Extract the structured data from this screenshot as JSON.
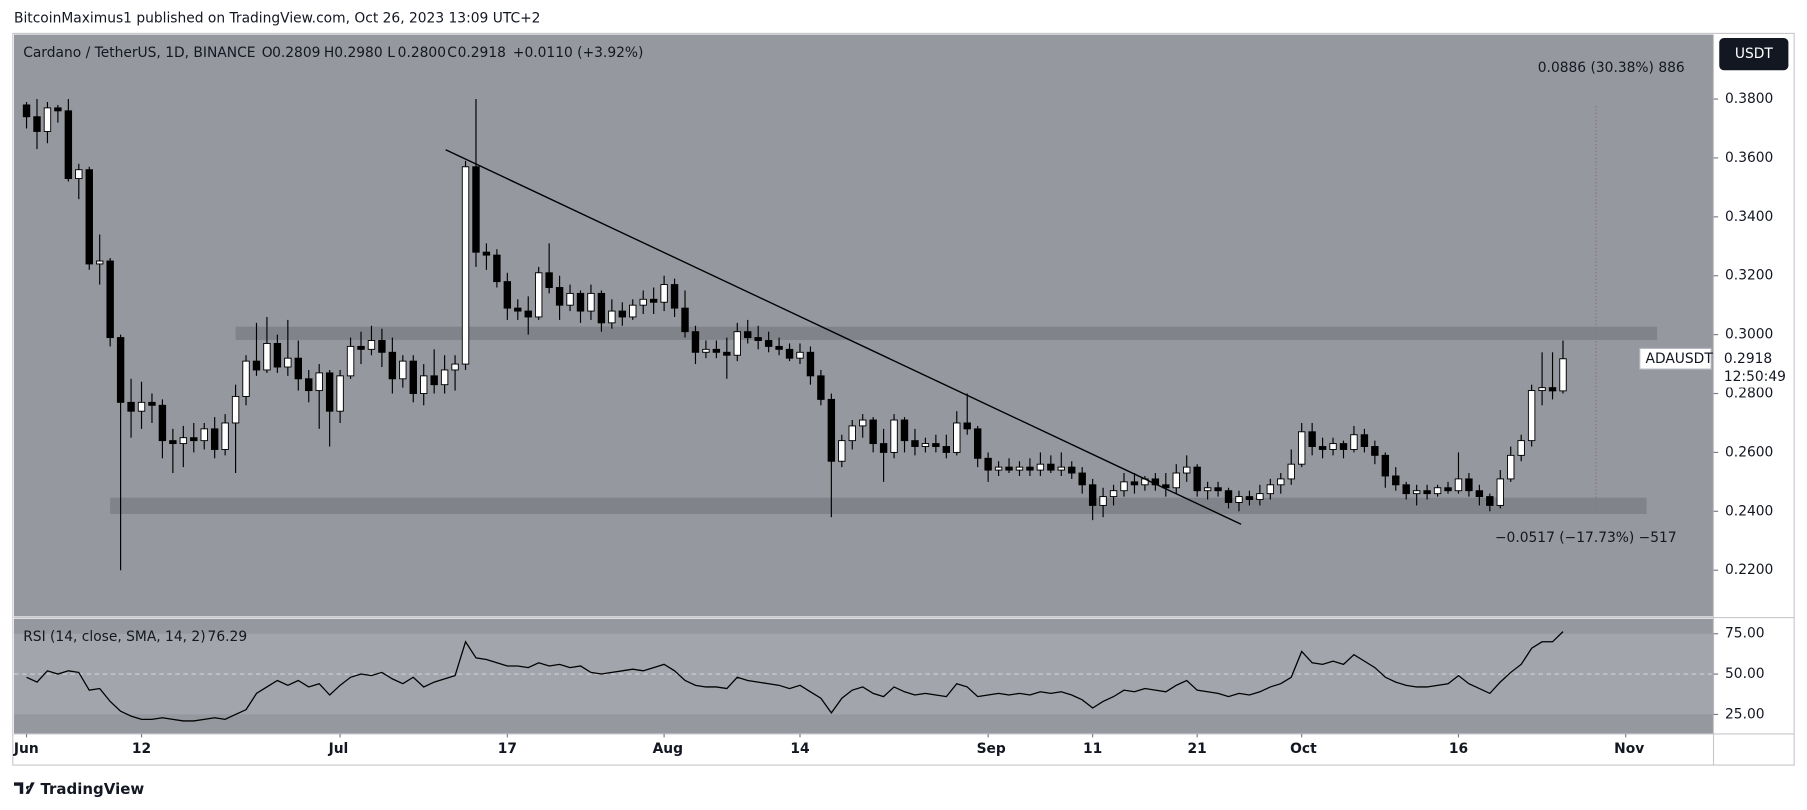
{
  "header": "BitcoinMaximus1 published on TradingView.com, Oct 26, 2023 13:09 UTC+2",
  "footer": "TradingView",
  "chart_data": {
    "type": "candlestick",
    "legend": {
      "symbol": "Cardano / TetherUS, 1D, BINANCE",
      "ohlc_labels": [
        "O",
        "H",
        "L",
        "C"
      ],
      "ohlc_values": [
        "0.2809",
        "0.2980",
        "0.2800",
        "0.2918"
      ],
      "change": "+0.0110 (+3.92%)"
    },
    "currency": "USDT",
    "price_label": {
      "symbol": "ADAUSDT",
      "price": "0.2918",
      "countdown": "12:50:49"
    },
    "up_color": "#ffffff",
    "down_color": "#000000",
    "xlim": [
      -1.2,
      161.4
    ],
    "xticks": [
      {
        "value": 0,
        "label": "Jun"
      },
      {
        "value": 11,
        "label": "12"
      },
      {
        "value": 30,
        "label": "Jul"
      },
      {
        "value": 46,
        "label": "17"
      },
      {
        "value": 61,
        "label": "Aug"
      },
      {
        "value": 74,
        "label": "14"
      },
      {
        "value": 92,
        "label": "Sep"
      },
      {
        "value": 102,
        "label": "11"
      },
      {
        "value": 112,
        "label": "21"
      },
      {
        "value": 122,
        "label": "Oct"
      },
      {
        "value": 137,
        "label": "16"
      },
      {
        "value": 153,
        "label": "Nov"
      }
    ],
    "ylim": [
      0.2043,
      0.4019
    ],
    "yticks": [
      {
        "value": 0.22,
        "label": "0.2200"
      },
      {
        "value": 0.24,
        "label": "0.2400"
      },
      {
        "value": 0.26,
        "label": "0.2600"
      },
      {
        "value": 0.28,
        "label": "0.2800"
      },
      {
        "value": 0.3,
        "label": "0.3000"
      },
      {
        "value": 0.32,
        "label": "0.3200"
      },
      {
        "value": 0.34,
        "label": "0.3400"
      },
      {
        "value": 0.36,
        "label": "0.3600"
      },
      {
        "value": 0.38,
        "label": "0.3800"
      }
    ],
    "ohlc": [
      [
        0.378,
        0.379,
        0.37,
        0.374
      ],
      [
        0.374,
        0.38,
        0.363,
        0.369
      ],
      [
        0.369,
        0.379,
        0.365,
        0.377
      ],
      [
        0.377,
        0.378,
        0.372,
        0.376
      ],
      [
        0.376,
        0.38,
        0.352,
        0.353
      ],
      [
        0.353,
        0.358,
        0.346,
        0.356
      ],
      [
        0.356,
        0.357,
        0.322,
        0.324
      ],
      [
        0.324,
        0.334,
        0.317,
        0.325
      ],
      [
        0.325,
        0.326,
        0.296,
        0.299
      ],
      [
        0.299,
        0.3,
        0.22,
        0.277
      ],
      [
        0.277,
        0.285,
        0.265,
        0.274
      ],
      [
        0.274,
        0.284,
        0.268,
        0.277
      ],
      [
        0.277,
        0.28,
        0.27,
        0.276
      ],
      [
        0.276,
        0.278,
        0.258,
        0.264
      ],
      [
        0.264,
        0.268,
        0.253,
        0.263
      ],
      [
        0.263,
        0.269,
        0.255,
        0.265
      ],
      [
        0.265,
        0.27,
        0.26,
        0.264
      ],
      [
        0.264,
        0.27,
        0.261,
        0.268
      ],
      [
        0.268,
        0.272,
        0.258,
        0.261
      ],
      [
        0.261,
        0.273,
        0.259,
        0.27
      ],
      [
        0.27,
        0.283,
        0.253,
        0.279
      ],
      [
        0.279,
        0.293,
        0.276,
        0.291
      ],
      [
        0.291,
        0.304,
        0.286,
        0.288
      ],
      [
        0.288,
        0.306,
        0.287,
        0.297
      ],
      [
        0.297,
        0.3,
        0.287,
        0.289
      ],
      [
        0.289,
        0.305,
        0.286,
        0.292
      ],
      [
        0.292,
        0.298,
        0.281,
        0.285
      ],
      [
        0.285,
        0.288,
        0.277,
        0.281
      ],
      [
        0.281,
        0.29,
        0.268,
        0.287
      ],
      [
        0.287,
        0.288,
        0.262,
        0.274
      ],
      [
        0.274,
        0.288,
        0.27,
        0.286
      ],
      [
        0.286,
        0.299,
        0.285,
        0.296
      ],
      [
        0.296,
        0.301,
        0.29,
        0.295
      ],
      [
        0.295,
        0.303,
        0.293,
        0.298
      ],
      [
        0.298,
        0.302,
        0.289,
        0.294
      ],
      [
        0.294,
        0.299,
        0.28,
        0.285
      ],
      [
        0.285,
        0.293,
        0.282,
        0.291
      ],
      [
        0.291,
        0.293,
        0.277,
        0.28
      ],
      [
        0.28,
        0.29,
        0.276,
        0.286
      ],
      [
        0.286,
        0.295,
        0.28,
        0.283
      ],
      [
        0.283,
        0.293,
        0.28,
        0.288
      ],
      [
        0.288,
        0.293,
        0.281,
        0.29
      ],
      [
        0.29,
        0.359,
        0.288,
        0.357
      ],
      [
        0.357,
        0.38,
        0.323,
        0.328
      ],
      [
        0.328,
        0.331,
        0.322,
        0.327
      ],
      [
        0.327,
        0.329,
        0.316,
        0.318
      ],
      [
        0.318,
        0.321,
        0.305,
        0.309
      ],
      [
        0.309,
        0.312,
        0.305,
        0.308
      ],
      [
        0.308,
        0.313,
        0.3,
        0.306
      ],
      [
        0.306,
        0.323,
        0.305,
        0.321
      ],
      [
        0.321,
        0.331,
        0.314,
        0.316
      ],
      [
        0.316,
        0.32,
        0.305,
        0.31
      ],
      [
        0.31,
        0.317,
        0.308,
        0.314
      ],
      [
        0.314,
        0.315,
        0.304,
        0.308
      ],
      [
        0.308,
        0.317,
        0.305,
        0.314
      ],
      [
        0.314,
        0.315,
        0.301,
        0.304
      ],
      [
        0.304,
        0.312,
        0.302,
        0.308
      ],
      [
        0.308,
        0.311,
        0.303,
        0.306
      ],
      [
        0.306,
        0.312,
        0.305,
        0.31
      ],
      [
        0.31,
        0.315,
        0.307,
        0.312
      ],
      [
        0.312,
        0.316,
        0.307,
        0.311
      ],
      [
        0.311,
        0.32,
        0.308,
        0.317
      ],
      [
        0.317,
        0.319,
        0.306,
        0.309
      ],
      [
        0.309,
        0.315,
        0.299,
        0.301
      ],
      [
        0.301,
        0.303,
        0.29,
        0.294
      ],
      [
        0.294,
        0.298,
        0.292,
        0.295
      ],
      [
        0.295,
        0.298,
        0.292,
        0.294
      ],
      [
        0.294,
        0.299,
        0.285,
        0.293
      ],
      [
        0.293,
        0.304,
        0.291,
        0.301
      ],
      [
        0.301,
        0.305,
        0.297,
        0.299
      ],
      [
        0.299,
        0.303,
        0.295,
        0.298
      ],
      [
        0.298,
        0.301,
        0.294,
        0.296
      ],
      [
        0.296,
        0.299,
        0.293,
        0.295
      ],
      [
        0.295,
        0.297,
        0.291,
        0.292
      ],
      [
        0.292,
        0.297,
        0.29,
        0.294
      ],
      [
        0.294,
        0.296,
        0.283,
        0.286
      ],
      [
        0.286,
        0.288,
        0.276,
        0.278
      ],
      [
        0.278,
        0.28,
        0.238,
        0.257
      ],
      [
        0.257,
        0.266,
        0.255,
        0.264
      ],
      [
        0.264,
        0.271,
        0.261,
        0.269
      ],
      [
        0.269,
        0.273,
        0.265,
        0.271
      ],
      [
        0.271,
        0.272,
        0.26,
        0.263
      ],
      [
        0.263,
        0.268,
        0.25,
        0.26
      ],
      [
        0.26,
        0.273,
        0.258,
        0.271
      ],
      [
        0.271,
        0.272,
        0.26,
        0.264
      ],
      [
        0.264,
        0.268,
        0.259,
        0.262
      ],
      [
        0.262,
        0.265,
        0.26,
        0.263
      ],
      [
        0.263,
        0.266,
        0.26,
        0.262
      ],
      [
        0.262,
        0.266,
        0.258,
        0.26
      ],
      [
        0.26,
        0.274,
        0.259,
        0.27
      ],
      [
        0.27,
        0.28,
        0.266,
        0.268
      ],
      [
        0.268,
        0.269,
        0.255,
        0.258
      ],
      [
        0.258,
        0.26,
        0.25,
        0.254
      ],
      [
        0.254,
        0.257,
        0.252,
        0.255
      ],
      [
        0.255,
        0.258,
        0.253,
        0.254
      ],
      [
        0.254,
        0.257,
        0.252,
        0.255
      ],
      [
        0.255,
        0.258,
        0.252,
        0.254
      ],
      [
        0.254,
        0.26,
        0.252,
        0.256
      ],
      [
        0.256,
        0.259,
        0.253,
        0.254
      ],
      [
        0.254,
        0.26,
        0.252,
        0.255
      ],
      [
        0.255,
        0.257,
        0.251,
        0.253
      ],
      [
        0.253,
        0.255,
        0.246,
        0.249
      ],
      [
        0.249,
        0.251,
        0.237,
        0.242
      ],
      [
        0.242,
        0.248,
        0.238,
        0.245
      ],
      [
        0.245,
        0.249,
        0.242,
        0.247
      ],
      [
        0.247,
        0.253,
        0.245,
        0.25
      ],
      [
        0.25,
        0.253,
        0.246,
        0.249
      ],
      [
        0.249,
        0.252,
        0.247,
        0.251
      ],
      [
        0.251,
        0.253,
        0.247,
        0.249
      ],
      [
        0.249,
        0.253,
        0.245,
        0.248
      ],
      [
        0.248,
        0.256,
        0.246,
        0.253
      ],
      [
        0.253,
        0.259,
        0.25,
        0.255
      ],
      [
        0.255,
        0.256,
        0.245,
        0.247
      ],
      [
        0.247,
        0.25,
        0.244,
        0.248
      ],
      [
        0.248,
        0.25,
        0.245,
        0.247
      ],
      [
        0.247,
        0.248,
        0.241,
        0.243
      ],
      [
        0.243,
        0.247,
        0.24,
        0.245
      ],
      [
        0.245,
        0.247,
        0.242,
        0.244
      ],
      [
        0.244,
        0.249,
        0.242,
        0.246
      ],
      [
        0.246,
        0.251,
        0.244,
        0.249
      ],
      [
        0.249,
        0.253,
        0.246,
        0.251
      ],
      [
        0.251,
        0.261,
        0.249,
        0.256
      ],
      [
        0.256,
        0.27,
        0.255,
        0.267
      ],
      [
        0.267,
        0.27,
        0.259,
        0.262
      ],
      [
        0.262,
        0.265,
        0.258,
        0.261
      ],
      [
        0.261,
        0.265,
        0.259,
        0.263
      ],
      [
        0.263,
        0.264,
        0.258,
        0.261
      ],
      [
        0.261,
        0.269,
        0.26,
        0.266
      ],
      [
        0.266,
        0.268,
        0.26,
        0.262
      ],
      [
        0.262,
        0.264,
        0.256,
        0.259
      ],
      [
        0.259,
        0.26,
        0.248,
        0.252
      ],
      [
        0.252,
        0.255,
        0.247,
        0.249
      ],
      [
        0.249,
        0.25,
        0.244,
        0.246
      ],
      [
        0.246,
        0.249,
        0.242,
        0.247
      ],
      [
        0.247,
        0.249,
        0.244,
        0.246
      ],
      [
        0.246,
        0.249,
        0.245,
        0.248
      ],
      [
        0.248,
        0.25,
        0.246,
        0.247
      ],
      [
        0.247,
        0.26,
        0.246,
        0.251
      ],
      [
        0.251,
        0.253,
        0.245,
        0.247
      ],
      [
        0.247,
        0.249,
        0.242,
        0.245
      ],
      [
        0.245,
        0.246,
        0.24,
        0.242
      ],
      [
        0.242,
        0.254,
        0.241,
        0.251
      ],
      [
        0.251,
        0.262,
        0.25,
        0.259
      ],
      [
        0.259,
        0.266,
        0.257,
        0.264
      ],
      [
        0.264,
        0.283,
        0.262,
        0.281
      ],
      [
        0.281,
        0.294,
        0.276,
        0.282
      ],
      [
        0.282,
        0.294,
        0.278,
        0.2809
      ],
      [
        0.2809,
        0.298,
        0.28,
        0.2918
      ]
    ],
    "zones": [
      {
        "x": [
          20,
          156
        ],
        "y": [
          0.2982,
          0.3027
        ],
        "color": "#7d7f86"
      },
      {
        "x": [
          8,
          155
        ],
        "y": [
          0.2391,
          0.2446
        ],
        "color": "#7d7f86"
      }
    ],
    "trendline": {
      "x": [
        40.1,
        116.2
      ],
      "y": [
        0.3628,
        0.2356
      ],
      "color": "#000000"
    },
    "measure_labels": [
      "0.0886 (30.38%) 886",
      "−0.0517 (−17.73%) −517"
    ],
    "rsi": {
      "label": "RSI (14, close, SMA, 14, 2)",
      "value_label": "76.29",
      "color": "#000000",
      "ylim": [
        12.9,
        84.3
      ],
      "yticks": [
        {
          "value": 25,
          "label": "25.00"
        },
        {
          "value": 50,
          "label": "50.00"
        },
        {
          "value": 75,
          "label": "75.00"
        }
      ],
      "values": [
        48,
        45,
        52,
        50,
        52,
        51,
        40,
        41,
        33,
        27,
        24,
        22,
        22,
        23,
        22,
        21,
        21,
        22,
        23,
        22,
        25,
        28,
        38,
        42,
        46,
        43,
        46,
        42,
        44,
        37,
        43,
        48,
        50,
        49,
        51,
        47,
        44,
        48,
        42,
        45,
        47,
        49,
        70,
        60,
        59,
        57,
        55,
        55,
        54,
        57,
        55,
        56,
        54,
        55,
        51,
        50,
        51,
        52,
        53,
        52,
        54,
        56,
        52,
        46,
        43,
        42,
        42,
        41,
        48,
        46,
        45,
        44,
        43,
        41,
        43,
        39,
        35,
        26,
        35,
        40,
        42,
        38,
        36,
        42,
        39,
        37,
        38,
        37,
        36,
        44,
        42,
        36,
        37,
        38,
        37,
        38,
        37,
        39,
        38,
        39,
        37,
        34,
        29,
        33,
        36,
        40,
        39,
        41,
        40,
        39,
        43,
        46,
        40,
        39,
        38,
        36,
        38,
        37,
        39,
        42,
        44,
        48,
        64,
        57,
        56,
        58,
        56,
        62,
        58,
        54,
        48,
        45,
        43,
        42,
        42,
        43,
        44,
        49,
        44,
        41,
        38,
        45,
        51,
        56,
        66,
        70,
        70,
        76.29
      ]
    }
  }
}
